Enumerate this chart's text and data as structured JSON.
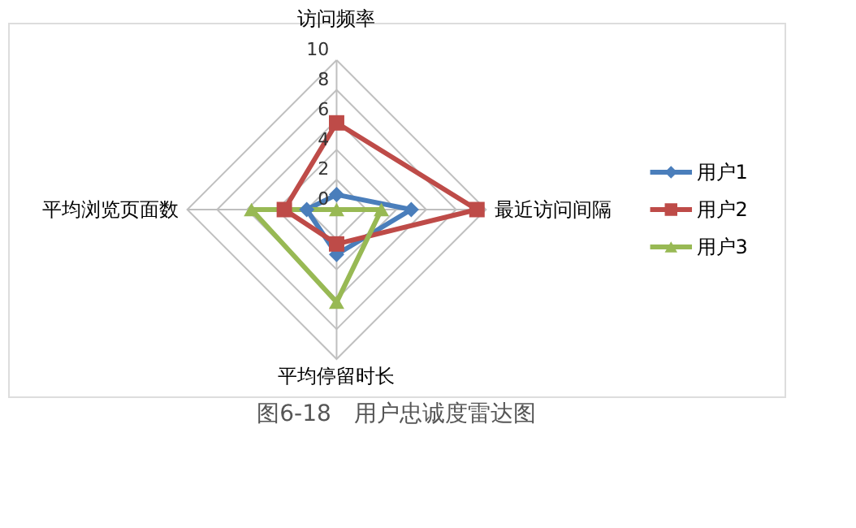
{
  "chart_data": {
    "type": "radar",
    "title": "图6-18　用户忠诚度雷达图",
    "categories": [
      "访问频率",
      "最近访问间隔",
      "平均停留时长",
      "平均浏览页面数"
    ],
    "ylim": [
      0,
      10
    ],
    "yticks": [
      0,
      2,
      4,
      6,
      8,
      10
    ],
    "grid": true,
    "legend": "right",
    "series": [
      {
        "name": "用户1",
        "color": "#4a7ebb",
        "marker": "diamond",
        "values": [
          1,
          5,
          3,
          2
        ]
      },
      {
        "name": "用户2",
        "color": "#be4b48",
        "marker": "square",
        "values": [
          5.8,
          9.4,
          2.3,
          3.5
        ]
      },
      {
        "name": "用户3",
        "color": "#98b954",
        "marker": "triangle",
        "values": [
          0,
          3,
          6.2,
          5.7
        ]
      }
    ]
  }
}
